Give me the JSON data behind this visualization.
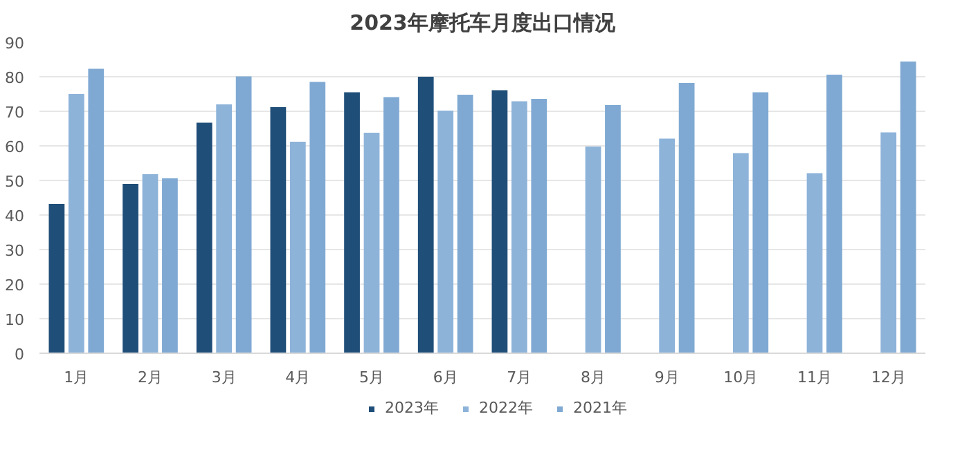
{
  "chart_data": {
    "type": "bar",
    "title": "2023年摩托车月度出口情况",
    "categories": [
      "1月",
      "2月",
      "3月",
      "4月",
      "5月",
      "6月",
      "7月",
      "8月",
      "9月",
      "10月",
      "11月",
      "12月"
    ],
    "series": [
      {
        "name": "2023年",
        "color": "#1f4e79",
        "values": [
          43.2,
          49,
          66.7,
          71.2,
          75.5,
          80,
          76.1,
          null,
          null,
          null,
          null,
          null
        ]
      },
      {
        "name": "2022年",
        "color": "#8db3d9",
        "values": [
          75,
          51.8,
          72,
          61.2,
          63.8,
          70.2,
          72.9,
          59.8,
          62.1,
          57.9,
          52.1,
          63.9
        ]
      },
      {
        "name": "2021年",
        "color": "#7fa9d3",
        "values": [
          82.3,
          50.6,
          80.1,
          78.5,
          74.1,
          74.8,
          73.6,
          71.8,
          78.2,
          75.5,
          80.6,
          84.4
        ]
      }
    ],
    "ylim": [
      0,
      90
    ],
    "yticks": [
      0,
      10,
      20,
      30,
      40,
      50,
      60,
      70,
      80,
      90
    ],
    "grid": "y",
    "legend": "bottom"
  }
}
